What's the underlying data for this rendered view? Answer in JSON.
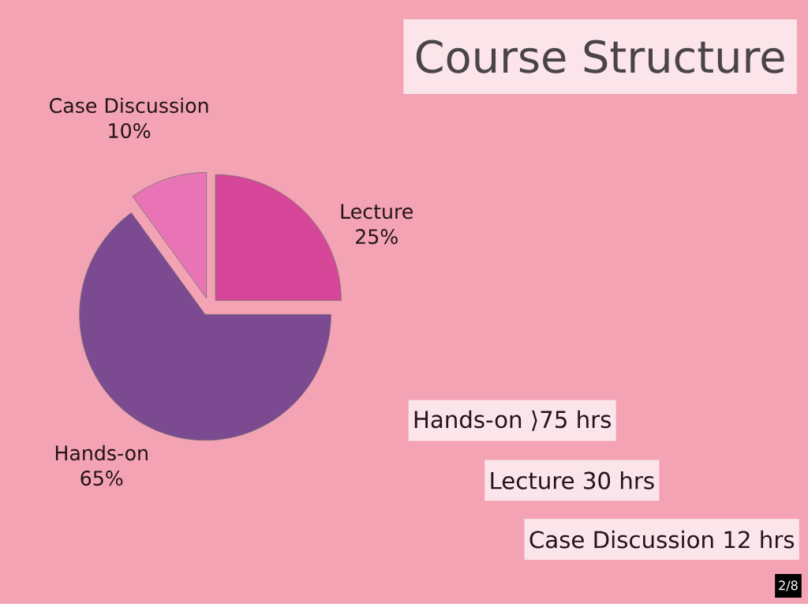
{
  "chart_data": {
    "type": "pie",
    "title": "Course Structure",
    "categories": [
      "Lecture",
      "Hands-on",
      "Case Discussion"
    ],
    "values": [
      25,
      65,
      10
    ],
    "colors": [
      "#d6479a",
      "#7b4a90",
      "#e874b5"
    ],
    "value_labels": [
      "25%",
      "65%",
      "10%"
    ],
    "annotations": [
      "Hands-on ⟩75 hrs",
      "Lecture 30 hrs",
      "Case Discussion 12 hrs",
      "2/8"
    ]
  }
}
